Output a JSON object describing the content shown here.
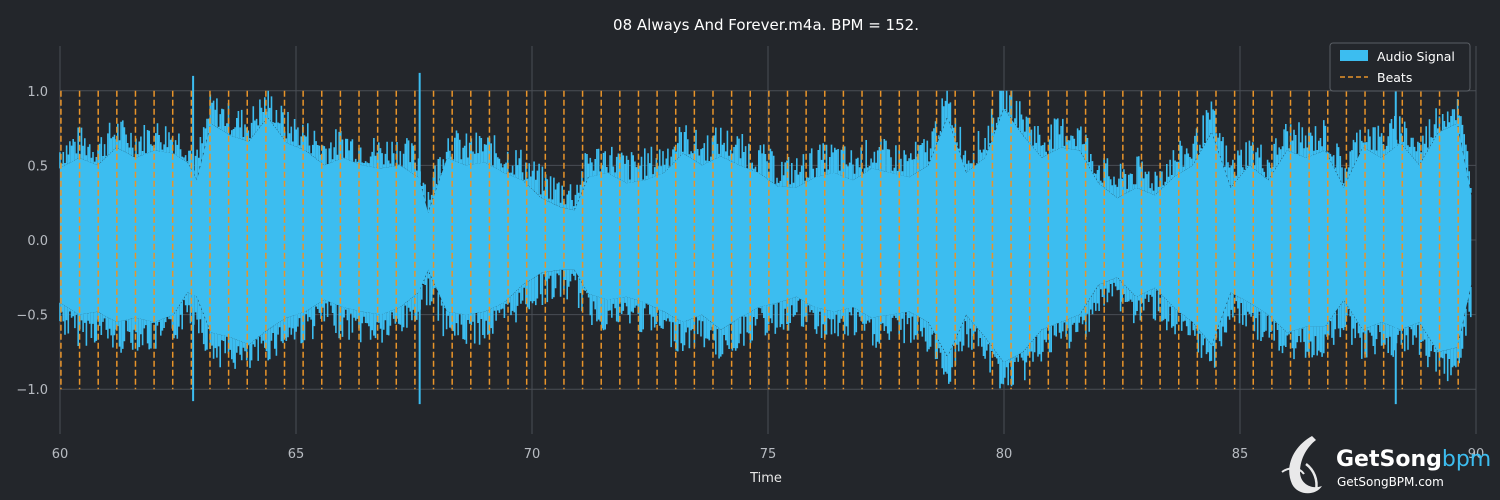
{
  "chart_data": {
    "type": "line",
    "title": "08 Always And Forever.m4a. BPM = 152.",
    "xlabel": "Time",
    "ylabel": "",
    "xlim": [
      60,
      90
    ],
    "ylim": [
      -1.3,
      1.3
    ],
    "xticks": [
      60,
      65,
      70,
      75,
      80,
      85,
      90
    ],
    "xtick_labels": [
      "60",
      "65",
      "70",
      "75",
      "80",
      "85",
      "90"
    ],
    "yticks": [
      1.0,
      0.5,
      0.0,
      -0.5,
      -1.0
    ],
    "ytick_labels": [
      "1.0",
      "0.5",
      "0.0",
      "−0.5",
      "−1.0"
    ],
    "grid": true,
    "legend_position": "top-right",
    "bpm": 152,
    "series": [
      {
        "name": "Audio Signal",
        "kind": "waveform-envelope",
        "color": "#3cbdf0",
        "t": [
          60.0,
          60.4,
          60.8,
          61.2,
          61.6,
          62.0,
          62.4,
          62.7,
          62.9,
          63.2,
          63.6,
          64.0,
          64.4,
          64.8,
          65.2,
          65.6,
          66.0,
          66.4,
          66.8,
          67.2,
          67.6,
          67.8,
          68.2,
          68.6,
          69.0,
          69.4,
          69.8,
          70.2,
          70.6,
          70.9,
          71.2,
          71.6,
          72.0,
          72.4,
          72.8,
          73.2,
          73.6,
          74.0,
          74.4,
          74.8,
          75.2,
          75.6,
          76.0,
          76.4,
          76.8,
          77.2,
          77.6,
          78.0,
          78.4,
          78.8,
          79.2,
          79.6,
          80.0,
          80.4,
          80.8,
          81.2,
          81.6,
          82.0,
          82.4,
          82.8,
          83.2,
          83.6,
          84.0,
          84.4,
          84.8,
          85.2,
          85.6,
          86.0,
          86.4,
          86.8,
          87.2,
          87.6,
          88.0,
          88.4,
          88.8,
          89.2,
          89.6,
          89.9
        ],
        "upper": [
          0.48,
          0.55,
          0.5,
          0.62,
          0.55,
          0.6,
          0.58,
          0.52,
          0.4,
          0.78,
          0.7,
          0.66,
          0.82,
          0.65,
          0.6,
          0.5,
          0.55,
          0.5,
          0.48,
          0.5,
          0.42,
          0.18,
          0.55,
          0.5,
          0.52,
          0.45,
          0.4,
          0.28,
          0.22,
          0.2,
          0.42,
          0.45,
          0.38,
          0.4,
          0.45,
          0.58,
          0.5,
          0.56,
          0.5,
          0.45,
          0.36,
          0.35,
          0.42,
          0.45,
          0.4,
          0.48,
          0.45,
          0.42,
          0.5,
          0.82,
          0.45,
          0.55,
          0.88,
          0.7,
          0.55,
          0.62,
          0.6,
          0.38,
          0.28,
          0.35,
          0.3,
          0.42,
          0.5,
          0.72,
          0.35,
          0.5,
          0.4,
          0.6,
          0.55,
          0.6,
          0.35,
          0.62,
          0.55,
          0.65,
          0.5,
          0.72,
          0.78,
          0.3
        ],
        "lower": [
          -0.42,
          -0.5,
          -0.48,
          -0.55,
          -0.52,
          -0.55,
          -0.5,
          -0.35,
          -0.38,
          -0.62,
          -0.65,
          -0.7,
          -0.6,
          -0.52,
          -0.48,
          -0.4,
          -0.45,
          -0.48,
          -0.5,
          -0.45,
          -0.35,
          -0.2,
          -0.48,
          -0.5,
          -0.48,
          -0.42,
          -0.3,
          -0.22,
          -0.2,
          -0.2,
          -0.36,
          -0.4,
          -0.38,
          -0.42,
          -0.48,
          -0.55,
          -0.5,
          -0.6,
          -0.52,
          -0.45,
          -0.42,
          -0.38,
          -0.45,
          -0.48,
          -0.45,
          -0.52,
          -0.5,
          -0.48,
          -0.55,
          -0.78,
          -0.5,
          -0.65,
          -0.82,
          -0.75,
          -0.6,
          -0.55,
          -0.5,
          -0.3,
          -0.25,
          -0.38,
          -0.32,
          -0.45,
          -0.55,
          -0.7,
          -0.35,
          -0.42,
          -0.5,
          -0.62,
          -0.58,
          -0.58,
          -0.4,
          -0.6,
          -0.55,
          -0.6,
          -0.55,
          -0.75,
          -0.72,
          -0.3
        ],
        "peaks": [
          {
            "t": 62.82,
            "max": 1.1,
            "min": -1.08
          },
          {
            "t": 67.62,
            "max": 1.12,
            "min": -1.1
          },
          {
            "t": 88.3,
            "max": 1.12,
            "min": -1.1
          }
        ]
      },
      {
        "name": "Beats",
        "kind": "vertical-lines",
        "color": "#e8942a",
        "start": 60.02,
        "interval": 0.3947,
        "ymin": -1.0,
        "ymax": 1.0
      }
    ]
  },
  "watermark": {
    "brand_main": "GetSong",
    "brand_accent": "bpm",
    "url": "GetSongBPM.com"
  }
}
